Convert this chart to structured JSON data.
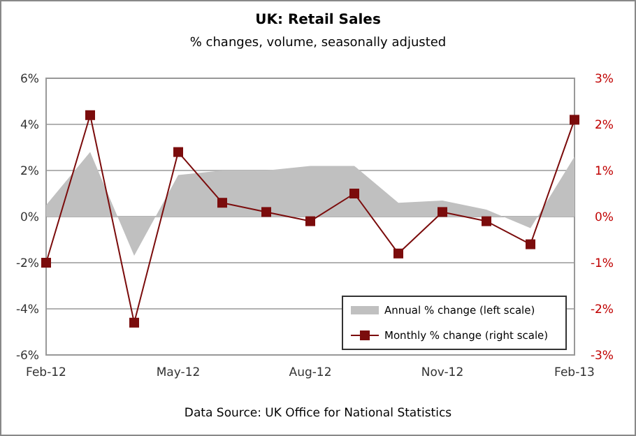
{
  "chart_data": {
    "type": "area",
    "title": "UK: Retail Sales",
    "subtitle": "% changes, volume, seasonally adjusted",
    "categories": [
      "Feb-12",
      null,
      null,
      "May-12",
      null,
      null,
      "Aug-12",
      null,
      null,
      "Nov-12",
      null,
      null,
      "Feb-13"
    ],
    "series": [
      {
        "name": "Annual % change (left scale)",
        "color": "#c0c0c0",
        "values": [
          0.5,
          2.8,
          -1.7,
          1.8,
          2.0,
          2.0,
          2.2,
          2.2,
          0.6,
          0.7,
          0.3,
          -0.5,
          2.6
        ]
      },
      {
        "name": "Monthly % change (right scale)",
        "type": "line",
        "marker": "square",
        "axis": "y2",
        "color": "#7b0c0c",
        "values": [
          -1.0,
          2.2,
          -2.3,
          1.4,
          0.3,
          0.1,
          -0.1,
          0.5,
          -0.8,
          0.1,
          -0.1,
          -0.6,
          2.1
        ]
      }
    ],
    "ylim": [
      -6,
      6
    ],
    "yticks": [
      {
        "value": -6,
        "label": "-6%"
      },
      {
        "value": -4,
        "label": "-4%"
      },
      {
        "value": -2,
        "label": "-2%"
      },
      {
        "value": 0,
        "label": "0%"
      },
      {
        "value": 2,
        "label": "2%"
      },
      {
        "value": 4,
        "label": "4%"
      },
      {
        "value": 6,
        "label": "6%"
      }
    ],
    "y2lim": [
      -3,
      3
    ],
    "y2ticks": [
      {
        "value": -3,
        "label": "-3%"
      },
      {
        "value": -2,
        "label": "-2%"
      },
      {
        "value": -1,
        "label": "-1%"
      },
      {
        "value": 0,
        "label": "0%"
      },
      {
        "value": 1,
        "label": "1%"
      },
      {
        "value": 2,
        "label": "2%"
      },
      {
        "value": 3,
        "label": "3%"
      }
    ],
    "grid": "y",
    "legend": "bottom right",
    "line_style": "solid",
    "annotations": [
      "Data Source: UK Office for National Statistics"
    ]
  }
}
